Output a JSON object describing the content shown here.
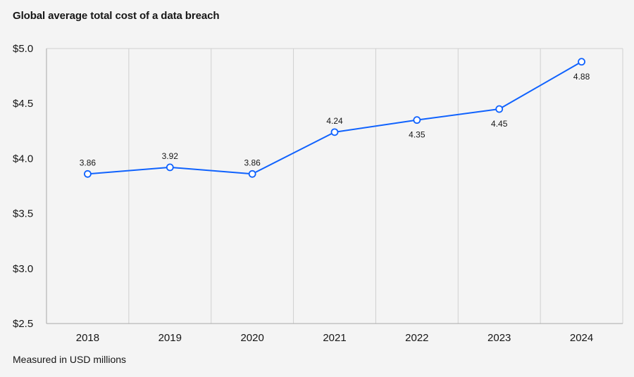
{
  "chart_data": {
    "type": "line",
    "title": "Global average total cost of a data breach",
    "footnote": "Measured in USD millions",
    "categories": [
      "2018",
      "2019",
      "2020",
      "2021",
      "2022",
      "2023",
      "2024"
    ],
    "series": [
      {
        "values": [
          3.86,
          3.92,
          3.86,
          4.24,
          4.35,
          4.45,
          4.88
        ],
        "labels": [
          "3.86",
          "3.92",
          "3.86",
          "4.24",
          "4.35",
          "4.45",
          "4.88"
        ],
        "label_positions": [
          "above",
          "above",
          "above",
          "above",
          "below",
          "below",
          "below"
        ],
        "color": "#0f62fe"
      }
    ],
    "ylim": [
      2.5,
      5.0
    ],
    "yticks": [
      2.5,
      3.0,
      3.5,
      4.0,
      4.5,
      5.0
    ],
    "ytick_labels": [
      "$2.5",
      "$3.0",
      "$3.5",
      "$4.0",
      "$4.5",
      "$5.0"
    ],
    "grid": "vertical",
    "colors": {
      "line": "#0f62fe",
      "grid": "#d0d0d0",
      "axis": "#a8a8a8",
      "background": "#f4f4f4"
    }
  }
}
